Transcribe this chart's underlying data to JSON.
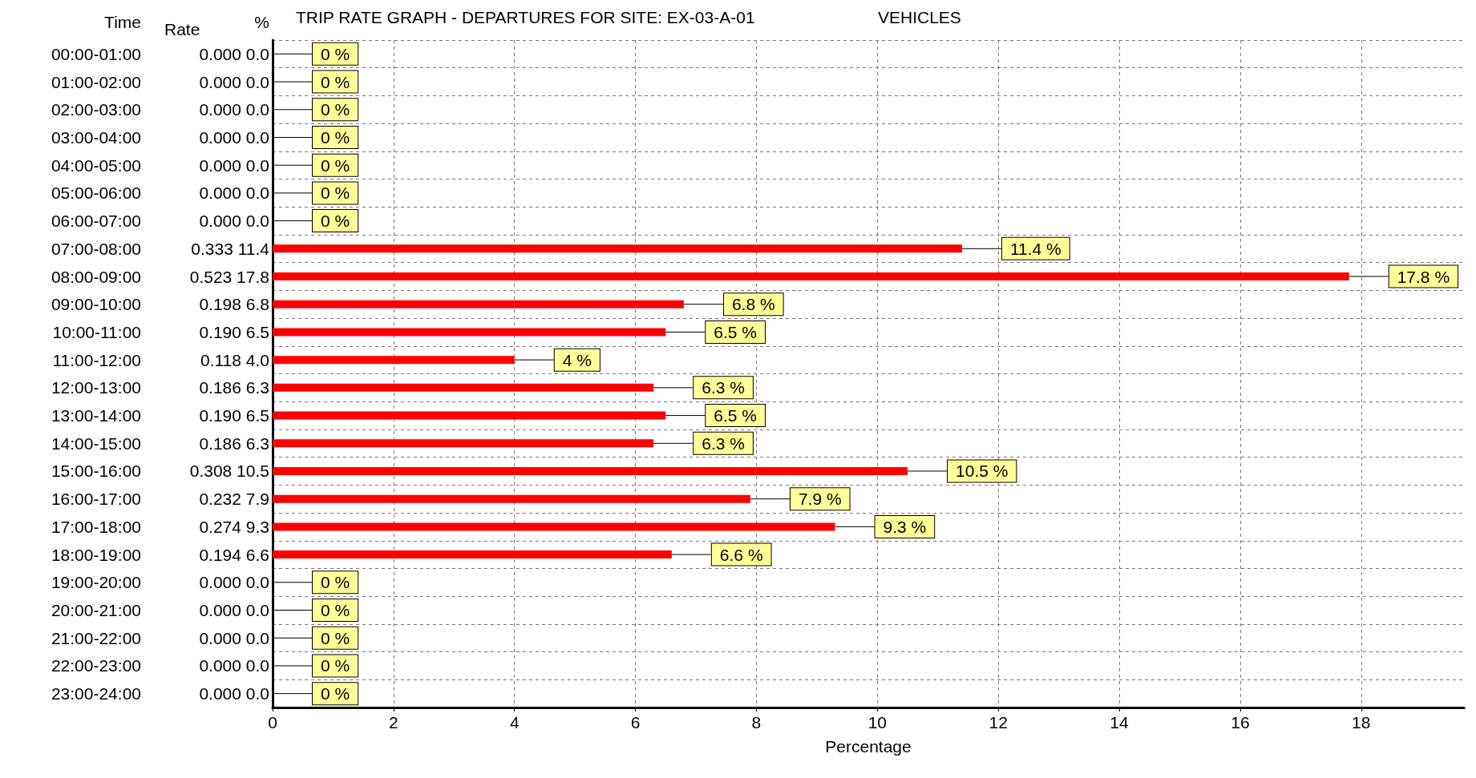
{
  "chart_data": {
    "type": "bar",
    "orientation": "horizontal",
    "title": "TRIP RATE GRAPH - DEPARTURES FOR SITE: EX-03-A-01",
    "subtitle": "VEHICLES",
    "xlabel": "Percentage",
    "annotations": [
      "Time",
      "Rate",
      "%"
    ],
    "categories": [
      "00:00-01:00",
      "01:00-02:00",
      "02:00-03:00",
      "03:00-04:00",
      "04:00-05:00",
      "05:00-06:00",
      "06:00-07:00",
      "07:00-08:00",
      "08:00-09:00",
      "09:00-10:00",
      "10:00-11:00",
      "11:00-12:00",
      "12:00-13:00",
      "13:00-14:00",
      "14:00-15:00",
      "15:00-16:00",
      "16:00-17:00",
      "17:00-18:00",
      "18:00-19:00",
      "19:00-20:00",
      "20:00-21:00",
      "21:00-22:00",
      "22:00-23:00",
      "23:00-24:00"
    ],
    "y2_categories": [
      "0.000 0.0",
      "0.000 0.0",
      "0.000 0.0",
      "0.000 0.0",
      "0.000 0.0",
      "0.000 0.0",
      "0.000 0.0",
      "0.333 11.4",
      "0.523 17.8",
      "0.198 6.8",
      "0.190 6.5",
      "0.118 4.0",
      "0.186 6.3",
      "0.190 6.5",
      "0.186 6.3",
      "0.308 10.5",
      "0.232 7.9",
      "0.274 9.3",
      "0.194 6.6",
      "0.000 0.0",
      "0.000 0.0",
      "0.000 0.0",
      "0.000 0.0",
      "0.000 0.0"
    ],
    "values": [
      0,
      0,
      0,
      0,
      0,
      0,
      0,
      11.4,
      17.8,
      6.8,
      6.5,
      4.0,
      6.3,
      6.5,
      6.3,
      10.5,
      7.9,
      9.3,
      6.6,
      0,
      0,
      0,
      0,
      0
    ],
    "value_labels": [
      "0 %",
      "0 %",
      "0 %",
      "0 %",
      "0 %",
      "0 %",
      "0 %",
      "11.4 %",
      "17.8 %",
      "6.8 %",
      "6.5 %",
      "4 %",
      "6.3 %",
      "6.5 %",
      "6.3 %",
      "10.5 %",
      "7.9 %",
      "9.3 %",
      "6.6 %",
      "0 %",
      "0 %",
      "0 %",
      "0 %",
      "0 %"
    ],
    "color": "#ff0000",
    "xlim": [
      0,
      19.7
    ],
    "xticks": [
      0,
      2,
      4,
      6,
      8,
      10,
      12,
      14,
      16,
      18
    ],
    "grid": true
  }
}
